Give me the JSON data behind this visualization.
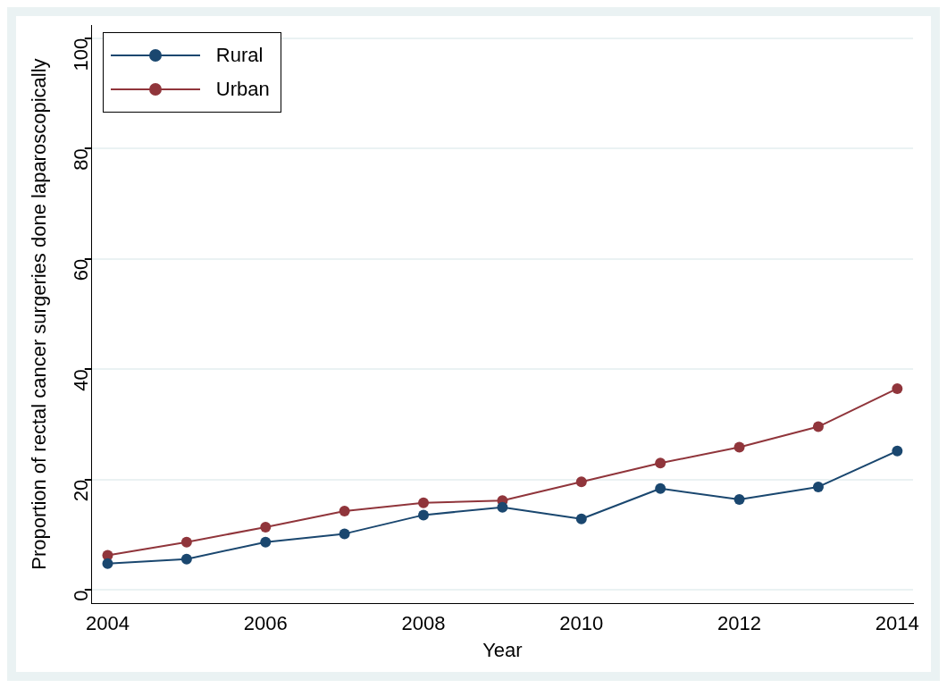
{
  "chart_data": {
    "type": "line",
    "xlabel": "Year",
    "ylabel": "Proportion of rectal cancer surgeries done laparoscopically",
    "x": [
      2004,
      2005,
      2006,
      2007,
      2008,
      2009,
      2010,
      2011,
      2012,
      2013,
      2014
    ],
    "series": [
      {
        "name": "Rural",
        "color": "#1a476f",
        "values": [
          4.8,
          5.6,
          8.7,
          10.2,
          13.6,
          15.0,
          12.9,
          18.4,
          16.4,
          18.7,
          25.2
        ]
      },
      {
        "name": "Urban",
        "color": "#90353b",
        "values": [
          6.3,
          8.7,
          11.4,
          14.3,
          15.8,
          16.2,
          19.6,
          23.0,
          25.9,
          29.6,
          36.5
        ]
      }
    ],
    "xlim": [
      2003.8,
      2014.2
    ],
    "xticks": [
      2004,
      2006,
      2008,
      2010,
      2012,
      2014
    ],
    "ylim": [
      -2.4,
      102.4
    ],
    "yticks": [
      0,
      20,
      40,
      60,
      80,
      100
    ],
    "grid": "y",
    "legend": "top left",
    "marker": "circle",
    "line_style": "solid"
  }
}
